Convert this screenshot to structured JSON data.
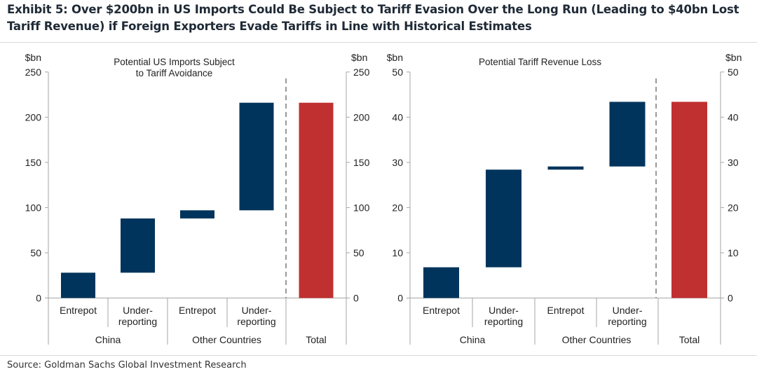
{
  "title": "Exhibit 5: Over $200bn in US Imports Could Be Subject to Tariff Evasion Over the Long Run (Leading to $40bn Lost Tariff Revenue) if Foreign Exporters Evade Tariffs in Line with Historical Estimates",
  "source": "Source: Goldman Sachs Global Investment Research",
  "colors": {
    "increment": "#00345c",
    "total": "#c03030",
    "axis": "#a6a6a6"
  },
  "chart_data": [
    {
      "type": "bar",
      "subtype": "waterfall",
      "title": "Potential US Imports Subject to Tariff Avoidance",
      "title_lines": [
        "Potential US Imports Subject",
        "to Tariff Avoidance"
      ],
      "ylabel": "$bn",
      "ylabel_right": "$bn",
      "ylim": [
        0,
        250
      ],
      "yticks": [
        0,
        50,
        100,
        150,
        200,
        250
      ],
      "categories": [
        "Entrepot",
        "Under-reporting",
        "Entrepot",
        "Under-reporting",
        "Total"
      ],
      "category_lines": [
        [
          "Entrepot"
        ],
        [
          "Under-",
          "reporting"
        ],
        [
          "Entrepot"
        ],
        [
          "Under-",
          "reporting"
        ],
        []
      ],
      "groups": [
        "China",
        "Other Countries",
        "Total"
      ],
      "bars": [
        {
          "group": "China",
          "category": "Entrepot",
          "start": 0,
          "end": 28
        },
        {
          "group": "China",
          "category": "Under-reporting",
          "start": 28,
          "end": 88
        },
        {
          "group": "Other Countries",
          "category": "Entrepot",
          "start": 88,
          "end": 97
        },
        {
          "group": "Other Countries",
          "category": "Under-reporting",
          "start": 97,
          "end": 216
        },
        {
          "group": "Total",
          "category": "Total",
          "start": 0,
          "end": 216,
          "total": true
        }
      ]
    },
    {
      "type": "bar",
      "subtype": "waterfall",
      "title": "Potential Tariff Revenue Loss",
      "title_lines": [
        "Potential Tariff Revenue Loss"
      ],
      "ylabel": "$bn",
      "ylabel_right": "$bn",
      "ylim": [
        0,
        50
      ],
      "yticks": [
        0,
        10,
        20,
        30,
        40,
        50
      ],
      "categories": [
        "Entrepot",
        "Under-reporting",
        "Entrepot",
        "Under-reporting",
        "Total"
      ],
      "category_lines": [
        [
          "Entrepot"
        ],
        [
          "Under-",
          "reporting"
        ],
        [
          "Entrepot"
        ],
        [
          "Under-",
          "reporting"
        ],
        []
      ],
      "groups": [
        "China",
        "Other Countries",
        "Total"
      ],
      "bars": [
        {
          "group": "China",
          "category": "Entrepot",
          "start": 0,
          "end": 6.8
        },
        {
          "group": "China",
          "category": "Under-reporting",
          "start": 6.8,
          "end": 28.4
        },
        {
          "group": "Other Countries",
          "category": "Entrepot",
          "start": 28.4,
          "end": 29.1
        },
        {
          "group": "Other Countries",
          "category": "Under-reporting",
          "start": 29.1,
          "end": 43.4
        },
        {
          "group": "Total",
          "category": "Total",
          "start": 0,
          "end": 43.4,
          "total": true
        }
      ]
    }
  ]
}
